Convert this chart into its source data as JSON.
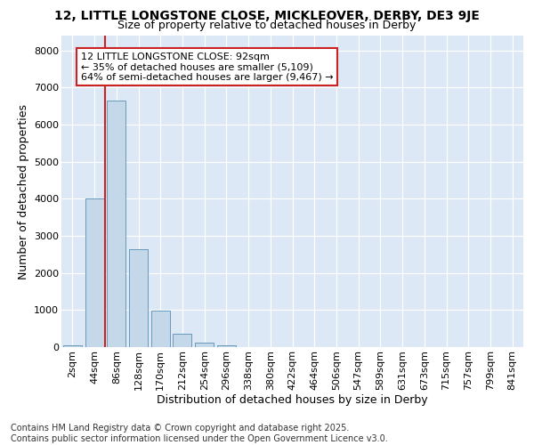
{
  "title1": "12, LITTLE LONGSTONE CLOSE, MICKLEOVER, DERBY, DE3 9JE",
  "title2": "Size of property relative to detached houses in Derby",
  "xlabel": "Distribution of detached houses by size in Derby",
  "ylabel": "Number of detached properties",
  "categories": [
    "2sqm",
    "44sqm",
    "86sqm",
    "128sqm",
    "170sqm",
    "212sqm",
    "254sqm",
    "296sqm",
    "338sqm",
    "380sqm",
    "422sqm",
    "464sqm",
    "506sqm",
    "547sqm",
    "589sqm",
    "631sqm",
    "673sqm",
    "715sqm",
    "757sqm",
    "799sqm",
    "841sqm"
  ],
  "values": [
    50,
    4000,
    6650,
    2650,
    980,
    350,
    130,
    50,
    0,
    0,
    0,
    0,
    0,
    0,
    0,
    0,
    0,
    0,
    0,
    0,
    0
  ],
  "bar_color": "#c5d8ea",
  "bar_edge_color": "#6699bb",
  "vline_color": "#cc2222",
  "vline_x": 1.5,
  "annotation_text": "12 LITTLE LONGSTONE CLOSE: 92sqm\n← 35% of detached houses are smaller (5,109)\n64% of semi-detached houses are larger (9,467) →",
  "box_edge_color": "#cc2222",
  "ylim": [
    0,
    8400
  ],
  "yticks": [
    0,
    1000,
    2000,
    3000,
    4000,
    5000,
    6000,
    7000,
    8000
  ],
  "plot_bg_color": "#dce8f5",
  "grid_color": "#ffffff",
  "title1_fontsize": 10,
  "title2_fontsize": 9,
  "axis_label_fontsize": 9,
  "tick_fontsize": 8,
  "annotation_fontsize": 8,
  "footer_fontsize": 7,
  "footer": "Contains HM Land Registry data © Crown copyright and database right 2025.\nContains public sector information licensed under the Open Government Licence v3.0."
}
